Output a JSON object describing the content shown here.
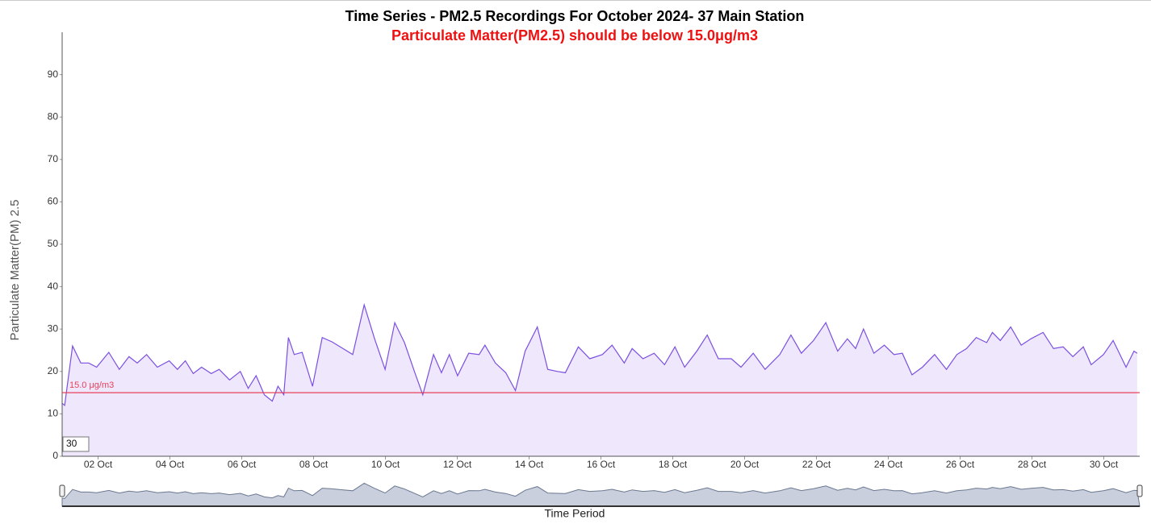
{
  "chart_data": {
    "type": "area",
    "title": "Time Series - PM2.5 Recordings For October 2024- 37 Main Station",
    "subtitle": "Particulate Matter(PM2.5) should be below 15.0μg/m3",
    "y_label": "Particulate Matter(PM) 2.5",
    "x_label": "Time Period",
    "input_box": "30",
    "xlim": [
      1,
      31
    ],
    "xticks": [
      {
        "value": 2,
        "label": "02 Oct"
      },
      {
        "value": 4,
        "label": "04 Oct"
      },
      {
        "value": 6,
        "label": "06 Oct"
      },
      {
        "value": 8,
        "label": "08 Oct"
      },
      {
        "value": 10,
        "label": "10 Oct"
      },
      {
        "value": 12,
        "label": "12 Oct"
      },
      {
        "value": 14,
        "label": "14 Oct"
      },
      {
        "value": 16,
        "label": "16 Oct"
      },
      {
        "value": 18,
        "label": "18 Oct"
      },
      {
        "value": 20,
        "label": "20 Oct"
      },
      {
        "value": 22,
        "label": "22 Oct"
      },
      {
        "value": 24,
        "label": "24 Oct"
      },
      {
        "value": 26,
        "label": "26 Oct"
      },
      {
        "value": 28,
        "label": "28 Oct"
      },
      {
        "value": 30,
        "label": "30 Oct"
      }
    ],
    "ylim": [
      0,
      100
    ],
    "yticks": [
      0,
      10,
      20,
      30,
      40,
      50,
      60,
      70,
      80,
      90
    ],
    "threshold": {
      "value": 15,
      "label": "15.0 μg/m3",
      "color": "#e8405a"
    },
    "series": [
      {
        "name": "PM2.5",
        "color": "#7b4fe0",
        "fill": "#efe8fd",
        "x": [
          1.0,
          1.07,
          1.29,
          1.52,
          1.74,
          1.96,
          2.3,
          2.59,
          2.86,
          3.09,
          3.35,
          3.65,
          3.98,
          4.21,
          4.43,
          4.65,
          4.88,
          5.15,
          5.37,
          5.66,
          5.96,
          6.18,
          6.4,
          6.63,
          6.85,
          7.01,
          7.17,
          7.3,
          7.46,
          7.68,
          7.97,
          8.24,
          8.51,
          8.8,
          9.09,
          9.41,
          9.7,
          9.99,
          10.26,
          10.53,
          10.82,
          11.04,
          11.34,
          11.56,
          11.78,
          12.01,
          12.32,
          12.61,
          12.77,
          13.06,
          13.35,
          13.62,
          13.89,
          14.23,
          14.52,
          14.79,
          15.01,
          15.37,
          15.69,
          16.04,
          16.31,
          16.65,
          16.87,
          17.17,
          17.48,
          17.77,
          18.06,
          18.33,
          18.67,
          18.96,
          19.27,
          19.63,
          19.9,
          20.24,
          20.57,
          20.98,
          21.29,
          21.58,
          21.92,
          22.26,
          22.59,
          22.86,
          23.09,
          23.31,
          23.6,
          23.89,
          24.16,
          24.39,
          24.66,
          24.95,
          25.29,
          25.62,
          25.91,
          26.18,
          26.45,
          26.74,
          26.9,
          27.12,
          27.41,
          27.7,
          27.97,
          28.31,
          28.6,
          28.87,
          29.14,
          29.43,
          29.65,
          29.99,
          30.26,
          30.62,
          30.84,
          30.93
        ],
        "values": [
          12.5,
          12,
          26,
          22,
          22,
          21,
          24.5,
          20.5,
          23.5,
          22,
          24,
          21,
          22.5,
          20.5,
          22.5,
          19.5,
          21,
          19.5,
          20.5,
          18,
          20,
          16,
          19,
          14.5,
          13,
          16.5,
          14.5,
          28,
          24,
          24.5,
          16.5,
          28,
          27,
          25.5,
          24,
          35.7,
          27.7,
          20.5,
          31.5,
          26.8,
          19.7,
          14.5,
          24,
          19.7,
          24,
          19,
          24.3,
          24,
          26.2,
          22,
          19.7,
          15.5,
          24.8,
          30.5,
          20.5,
          20,
          19.7,
          25.8,
          23,
          24,
          26.2,
          22,
          25.4,
          23,
          24.3,
          21.6,
          25.8,
          21,
          24.8,
          28.6,
          23,
          23,
          21,
          24.3,
          20.5,
          24,
          28.6,
          24.3,
          27.3,
          31.5,
          24.8,
          27.7,
          25.4,
          30,
          24.3,
          26.2,
          24,
          24.3,
          19.2,
          21,
          24,
          20.5,
          24,
          25.4,
          28,
          26.8,
          29.2,
          27.3,
          30.5,
          26.2,
          27.7,
          29.2,
          25.4,
          25.8,
          23.5,
          25.8,
          21.6,
          24,
          27.3,
          21,
          24.8,
          24.3
        ]
      }
    ]
  }
}
